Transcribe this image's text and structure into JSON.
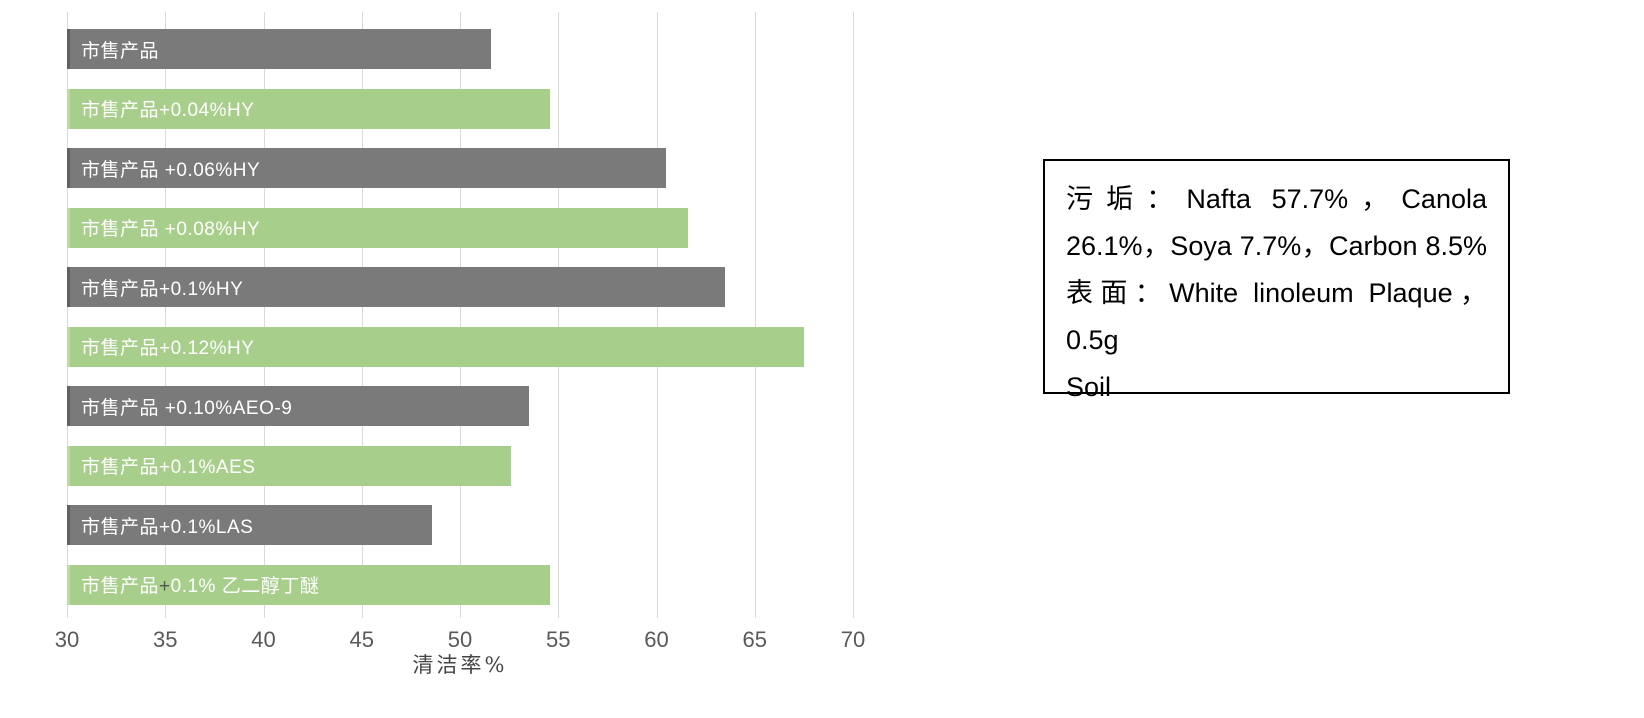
{
  "chart_data": {
    "type": "bar",
    "orientation": "horizontal",
    "title": "",
    "xlabel": "清洁率%",
    "ylabel": "",
    "xlim": [
      30,
      70
    ],
    "xticks": [
      30,
      35,
      40,
      45,
      50,
      55,
      60,
      65,
      70
    ],
    "xtick_labels": [
      "30",
      "35",
      "40",
      "45",
      "50",
      "55",
      "60",
      "65",
      "70"
    ],
    "grid": true,
    "legend": "none",
    "categories": [
      "市售产品",
      "市售产品+0.04%HY",
      "市售产品 +0.06%HY",
      "市售产品 +0.08%HY",
      "市售产品+0.1%HY",
      "市售产品+0.12%HY",
      "市售产品 +0.10%AEO-9",
      "市售产品+0.1%AES",
      "市售产品+0.1%LAS",
      "市售产品+0.1% 乙二醇丁醚"
    ],
    "values": [
      51.6,
      54.6,
      60.5,
      61.6,
      63.5,
      67.5,
      53.5,
      52.6,
      48.6,
      54.6
    ],
    "bar_colors": [
      "gray",
      "green",
      "gray",
      "green",
      "gray",
      "green",
      "gray",
      "green",
      "gray",
      "green"
    ],
    "dark_plus_bar_index": 9,
    "colors": {
      "gray": "#7a7a7a",
      "gray_edge": "#616161",
      "green": "#a8ce8c",
      "green_edge": "#bcdaa4",
      "gridline": "#d9d9d9",
      "tick_label": "#595959",
      "bar_label": "#ffffff",
      "dark_plus": "#555555"
    }
  },
  "annotation": {
    "lines": [
      "污垢：Nafta 57.7%，Canola",
      "26.1%，Soya 7.7%，Carbon 8.5%",
      "表面：White linoleum Plaque，0.5g",
      "Soil"
    ]
  }
}
